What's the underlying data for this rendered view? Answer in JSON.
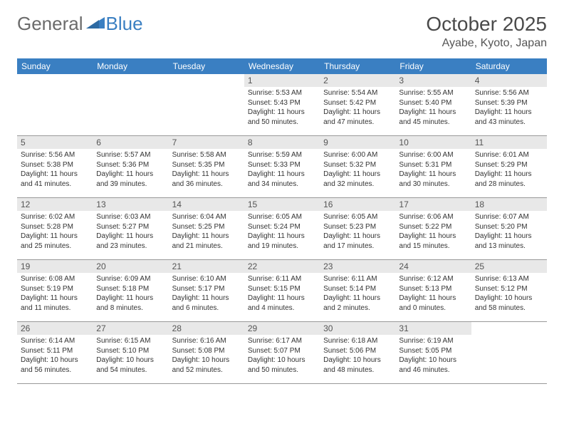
{
  "logo": {
    "text1": "General",
    "text2": "Blue"
  },
  "title": "October 2025",
  "location": "Ayabe, Kyoto, Japan",
  "weekdays": [
    "Sunday",
    "Monday",
    "Tuesday",
    "Wednesday",
    "Thursday",
    "Friday",
    "Saturday"
  ],
  "colors": {
    "header_bg": "#3a7fc2",
    "header_text": "#ffffff",
    "daynum_bg": "#e8e8e8",
    "text": "#333333",
    "logo_blue": "#3a7fc2",
    "logo_gray": "#6b6b6b"
  },
  "weeks": [
    [
      null,
      null,
      null,
      {
        "n": "1",
        "l1": "Sunrise: 5:53 AM",
        "l2": "Sunset: 5:43 PM",
        "l3": "Daylight: 11 hours",
        "l4": "and 50 minutes."
      },
      {
        "n": "2",
        "l1": "Sunrise: 5:54 AM",
        "l2": "Sunset: 5:42 PM",
        "l3": "Daylight: 11 hours",
        "l4": "and 47 minutes."
      },
      {
        "n": "3",
        "l1": "Sunrise: 5:55 AM",
        "l2": "Sunset: 5:40 PM",
        "l3": "Daylight: 11 hours",
        "l4": "and 45 minutes."
      },
      {
        "n": "4",
        "l1": "Sunrise: 5:56 AM",
        "l2": "Sunset: 5:39 PM",
        "l3": "Daylight: 11 hours",
        "l4": "and 43 minutes."
      }
    ],
    [
      {
        "n": "5",
        "l1": "Sunrise: 5:56 AM",
        "l2": "Sunset: 5:38 PM",
        "l3": "Daylight: 11 hours",
        "l4": "and 41 minutes."
      },
      {
        "n": "6",
        "l1": "Sunrise: 5:57 AM",
        "l2": "Sunset: 5:36 PM",
        "l3": "Daylight: 11 hours",
        "l4": "and 39 minutes."
      },
      {
        "n": "7",
        "l1": "Sunrise: 5:58 AM",
        "l2": "Sunset: 5:35 PM",
        "l3": "Daylight: 11 hours",
        "l4": "and 36 minutes."
      },
      {
        "n": "8",
        "l1": "Sunrise: 5:59 AM",
        "l2": "Sunset: 5:33 PM",
        "l3": "Daylight: 11 hours",
        "l4": "and 34 minutes."
      },
      {
        "n": "9",
        "l1": "Sunrise: 6:00 AM",
        "l2": "Sunset: 5:32 PM",
        "l3": "Daylight: 11 hours",
        "l4": "and 32 minutes."
      },
      {
        "n": "10",
        "l1": "Sunrise: 6:00 AM",
        "l2": "Sunset: 5:31 PM",
        "l3": "Daylight: 11 hours",
        "l4": "and 30 minutes."
      },
      {
        "n": "11",
        "l1": "Sunrise: 6:01 AM",
        "l2": "Sunset: 5:29 PM",
        "l3": "Daylight: 11 hours",
        "l4": "and 28 minutes."
      }
    ],
    [
      {
        "n": "12",
        "l1": "Sunrise: 6:02 AM",
        "l2": "Sunset: 5:28 PM",
        "l3": "Daylight: 11 hours",
        "l4": "and 25 minutes."
      },
      {
        "n": "13",
        "l1": "Sunrise: 6:03 AM",
        "l2": "Sunset: 5:27 PM",
        "l3": "Daylight: 11 hours",
        "l4": "and 23 minutes."
      },
      {
        "n": "14",
        "l1": "Sunrise: 6:04 AM",
        "l2": "Sunset: 5:25 PM",
        "l3": "Daylight: 11 hours",
        "l4": "and 21 minutes."
      },
      {
        "n": "15",
        "l1": "Sunrise: 6:05 AM",
        "l2": "Sunset: 5:24 PM",
        "l3": "Daylight: 11 hours",
        "l4": "and 19 minutes."
      },
      {
        "n": "16",
        "l1": "Sunrise: 6:05 AM",
        "l2": "Sunset: 5:23 PM",
        "l3": "Daylight: 11 hours",
        "l4": "and 17 minutes."
      },
      {
        "n": "17",
        "l1": "Sunrise: 6:06 AM",
        "l2": "Sunset: 5:22 PM",
        "l3": "Daylight: 11 hours",
        "l4": "and 15 minutes."
      },
      {
        "n": "18",
        "l1": "Sunrise: 6:07 AM",
        "l2": "Sunset: 5:20 PM",
        "l3": "Daylight: 11 hours",
        "l4": "and 13 minutes."
      }
    ],
    [
      {
        "n": "19",
        "l1": "Sunrise: 6:08 AM",
        "l2": "Sunset: 5:19 PM",
        "l3": "Daylight: 11 hours",
        "l4": "and 11 minutes."
      },
      {
        "n": "20",
        "l1": "Sunrise: 6:09 AM",
        "l2": "Sunset: 5:18 PM",
        "l3": "Daylight: 11 hours",
        "l4": "and 8 minutes."
      },
      {
        "n": "21",
        "l1": "Sunrise: 6:10 AM",
        "l2": "Sunset: 5:17 PM",
        "l3": "Daylight: 11 hours",
        "l4": "and 6 minutes."
      },
      {
        "n": "22",
        "l1": "Sunrise: 6:11 AM",
        "l2": "Sunset: 5:15 PM",
        "l3": "Daylight: 11 hours",
        "l4": "and 4 minutes."
      },
      {
        "n": "23",
        "l1": "Sunrise: 6:11 AM",
        "l2": "Sunset: 5:14 PM",
        "l3": "Daylight: 11 hours",
        "l4": "and 2 minutes."
      },
      {
        "n": "24",
        "l1": "Sunrise: 6:12 AM",
        "l2": "Sunset: 5:13 PM",
        "l3": "Daylight: 11 hours",
        "l4": "and 0 minutes."
      },
      {
        "n": "25",
        "l1": "Sunrise: 6:13 AM",
        "l2": "Sunset: 5:12 PM",
        "l3": "Daylight: 10 hours",
        "l4": "and 58 minutes."
      }
    ],
    [
      {
        "n": "26",
        "l1": "Sunrise: 6:14 AM",
        "l2": "Sunset: 5:11 PM",
        "l3": "Daylight: 10 hours",
        "l4": "and 56 minutes."
      },
      {
        "n": "27",
        "l1": "Sunrise: 6:15 AM",
        "l2": "Sunset: 5:10 PM",
        "l3": "Daylight: 10 hours",
        "l4": "and 54 minutes."
      },
      {
        "n": "28",
        "l1": "Sunrise: 6:16 AM",
        "l2": "Sunset: 5:08 PM",
        "l3": "Daylight: 10 hours",
        "l4": "and 52 minutes."
      },
      {
        "n": "29",
        "l1": "Sunrise: 6:17 AM",
        "l2": "Sunset: 5:07 PM",
        "l3": "Daylight: 10 hours",
        "l4": "and 50 minutes."
      },
      {
        "n": "30",
        "l1": "Sunrise: 6:18 AM",
        "l2": "Sunset: 5:06 PM",
        "l3": "Daylight: 10 hours",
        "l4": "and 48 minutes."
      },
      {
        "n": "31",
        "l1": "Sunrise: 6:19 AM",
        "l2": "Sunset: 5:05 PM",
        "l3": "Daylight: 10 hours",
        "l4": "and 46 minutes."
      },
      null
    ]
  ]
}
